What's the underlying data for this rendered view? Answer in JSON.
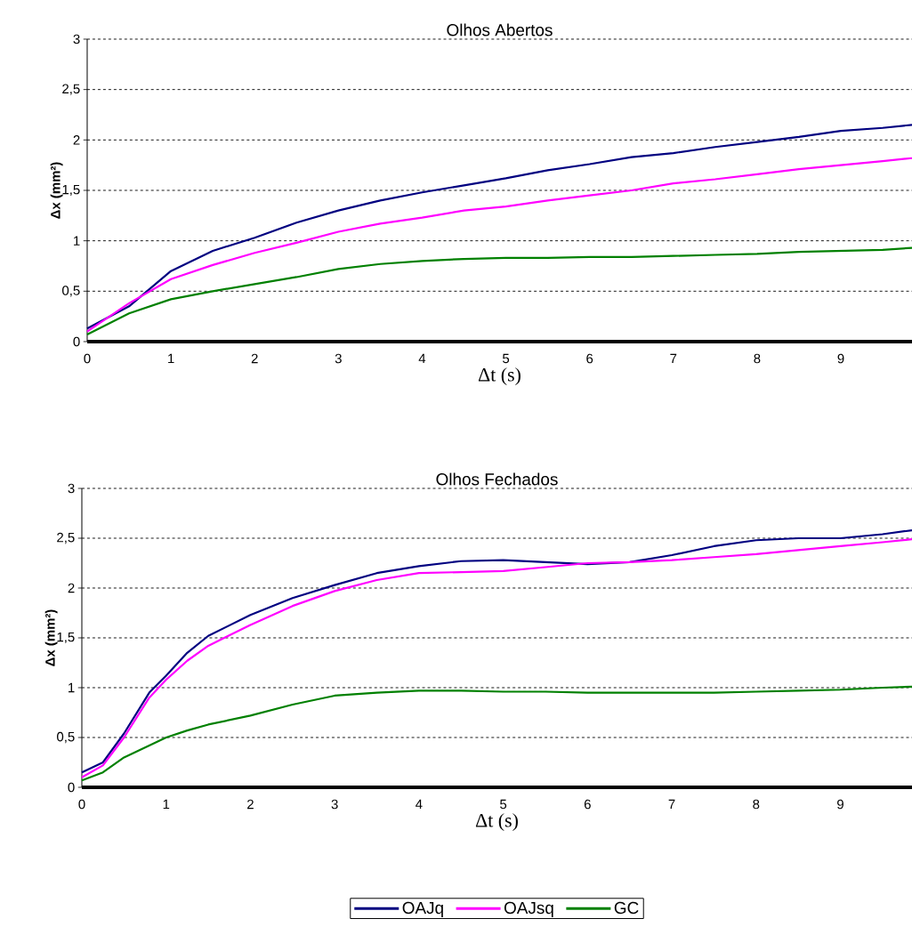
{
  "chart_data": [
    {
      "type": "line",
      "title": "Olhos Abertos",
      "xlabel": "Δt (s)",
      "ylabel": "Δx (mm²)",
      "xlim": [
        0,
        9.85
      ],
      "ylim": [
        0,
        3
      ],
      "xticks": [
        0,
        1,
        2,
        3,
        4,
        5,
        6,
        7,
        8,
        9
      ],
      "yticks": [
        0,
        {
          "value": 0.5,
          "label": "0,5"
        },
        1,
        {
          "value": 1.5,
          "label": "1,5"
        },
        2,
        {
          "value": 2.5,
          "label": "2,5"
        },
        3
      ],
      "grid": "y",
      "line_style": "solid",
      "x": [
        0,
        0.5,
        1,
        1.5,
        2,
        2.5,
        3,
        3.5,
        4,
        4.5,
        5,
        5.5,
        6,
        6.5,
        7,
        7.5,
        8,
        8.5,
        9,
        9.5,
        9.85
      ],
      "series": [
        {
          "color": "#000080",
          "values": [
            0.13,
            0.35,
            0.7,
            0.9,
            1.03,
            1.18,
            1.3,
            1.4,
            1.48,
            1.55,
            1.62,
            1.7,
            1.76,
            1.83,
            1.87,
            1.93,
            1.98,
            2.03,
            2.09,
            2.12,
            2.15
          ]
        },
        {
          "color": "#ff00ff",
          "values": [
            0.1,
            0.38,
            0.62,
            0.76,
            0.88,
            0.98,
            1.09,
            1.17,
            1.23,
            1.3,
            1.34,
            1.4,
            1.45,
            1.5,
            1.57,
            1.61,
            1.66,
            1.71,
            1.75,
            1.79,
            1.82
          ]
        },
        {
          "color": "#008000",
          "values": [
            0.07,
            0.28,
            0.42,
            0.5,
            0.57,
            0.64,
            0.72,
            0.77,
            0.8,
            0.82,
            0.83,
            0.83,
            0.84,
            0.84,
            0.85,
            0.86,
            0.87,
            0.89,
            0.9,
            0.91,
            0.93
          ]
        }
      ]
    },
    {
      "type": "line",
      "title": "Olhos Fechados",
      "xlabel": "Δt (s)",
      "ylabel": "Δx (mm²)",
      "xlim": [
        0,
        9.85
      ],
      "ylim": [
        0,
        3
      ],
      "xticks": [
        0,
        1,
        2,
        3,
        4,
        5,
        6,
        7,
        8,
        9
      ],
      "yticks": [
        0,
        {
          "value": 0.5,
          "label": "0,5"
        },
        1,
        {
          "value": 1.5,
          "label": "1,5"
        },
        2,
        {
          "value": 2.5,
          "label": "2,5"
        },
        3
      ],
      "grid": "y",
      "line_style": "solid",
      "legend": "bottom",
      "x": [
        0,
        0.25,
        0.5,
        0.8,
        1,
        1.25,
        1.5,
        2,
        2.5,
        3,
        3.5,
        4,
        4.5,
        5,
        5.5,
        6,
        6.5,
        7,
        7.5,
        8,
        8.5,
        9,
        9.5,
        9.85
      ],
      "series": [
        {
          "name": "OAJq",
          "color": "#000080",
          "values": [
            0.15,
            0.25,
            0.54,
            0.95,
            1.12,
            1.35,
            1.52,
            1.73,
            1.9,
            2.03,
            2.15,
            2.22,
            2.27,
            2.28,
            2.26,
            2.24,
            2.26,
            2.33,
            2.42,
            2.48,
            2.5,
            2.5,
            2.54,
            2.58
          ]
        },
        {
          "name": "OAJsq",
          "color": "#ff00ff",
          "values": [
            0.1,
            0.22,
            0.5,
            0.9,
            1.08,
            1.27,
            1.42,
            1.63,
            1.82,
            1.97,
            2.08,
            2.15,
            2.16,
            2.17,
            2.21,
            2.25,
            2.26,
            2.28,
            2.31,
            2.34,
            2.38,
            2.42,
            2.46,
            2.49
          ]
        },
        {
          "name": "GC",
          "color": "#008000",
          "values": [
            0.07,
            0.15,
            0.3,
            0.42,
            0.5,
            0.57,
            0.63,
            0.72,
            0.83,
            0.92,
            0.95,
            0.97,
            0.97,
            0.96,
            0.96,
            0.95,
            0.95,
            0.95,
            0.95,
            0.96,
            0.97,
            0.98,
            1.0,
            1.01
          ]
        }
      ]
    }
  ]
}
